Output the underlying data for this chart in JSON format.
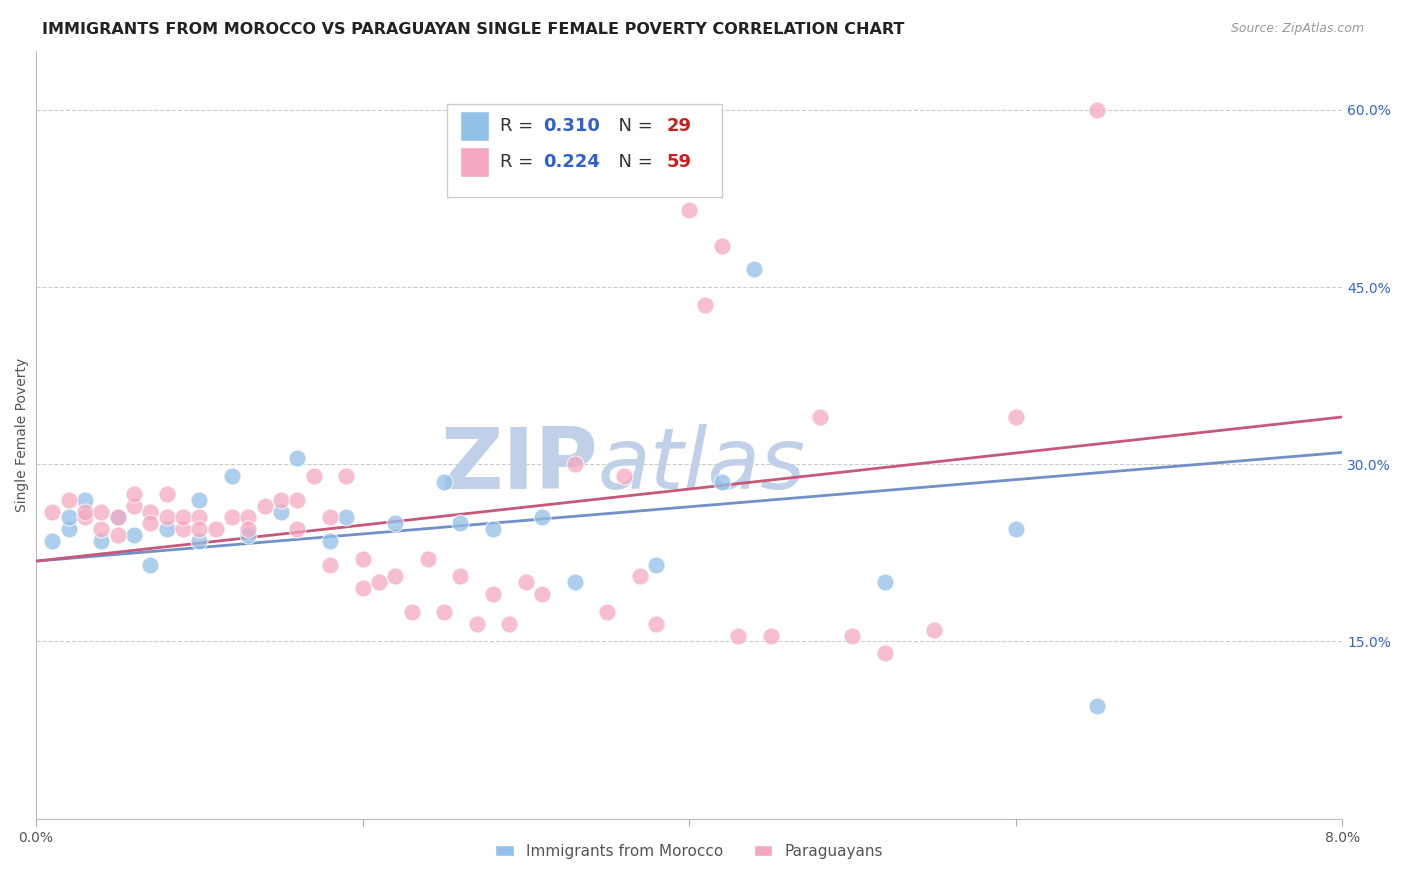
{
  "title": "IMMIGRANTS FROM MOROCCO VS PARAGUAYAN SINGLE FEMALE POVERTY CORRELATION CHART",
  "source": "Source: ZipAtlas.com",
  "ylabel": "Single Female Poverty",
  "x_min": 0.0,
  "x_max": 0.08,
  "y_min": 0.0,
  "y_max": 0.65,
  "right_yticks": [
    0.15,
    0.3,
    0.45,
    0.6
  ],
  "right_ytick_labels": [
    "15.0%",
    "30.0%",
    "45.0%",
    "60.0%"
  ],
  "grid_yticks": [
    0.15,
    0.3,
    0.45,
    0.6
  ],
  "blue_color": "#92C0E8",
  "pink_color": "#F4A8C0",
  "blue_line_color": "#7090C8",
  "pink_line_color": "#C85878",
  "blue_label": "Immigrants from Morocco",
  "pink_label": "Paraguayans",
  "blue_R": 0.31,
  "blue_N": 29,
  "pink_R": 0.224,
  "pink_N": 59,
  "legend_R_color": "#3060CC",
  "legend_N_color": "#CC2020",
  "blue_x": [
    0.001,
    0.002,
    0.002,
    0.003,
    0.004,
    0.005,
    0.006,
    0.007,
    0.008,
    0.01,
    0.01,
    0.012,
    0.013,
    0.015,
    0.016,
    0.018,
    0.019,
    0.022,
    0.025,
    0.026,
    0.028,
    0.031,
    0.033,
    0.038,
    0.042,
    0.044,
    0.052,
    0.06,
    0.065
  ],
  "blue_y": [
    0.235,
    0.245,
    0.255,
    0.27,
    0.235,
    0.255,
    0.24,
    0.215,
    0.245,
    0.27,
    0.235,
    0.29,
    0.24,
    0.26,
    0.305,
    0.235,
    0.255,
    0.25,
    0.285,
    0.25,
    0.245,
    0.255,
    0.2,
    0.215,
    0.285,
    0.465,
    0.2,
    0.245,
    0.095
  ],
  "pink_x": [
    0.001,
    0.002,
    0.003,
    0.003,
    0.004,
    0.004,
    0.005,
    0.005,
    0.006,
    0.006,
    0.007,
    0.007,
    0.008,
    0.008,
    0.009,
    0.009,
    0.01,
    0.01,
    0.011,
    0.012,
    0.013,
    0.013,
    0.014,
    0.015,
    0.016,
    0.016,
    0.017,
    0.018,
    0.018,
    0.019,
    0.02,
    0.02,
    0.021,
    0.022,
    0.023,
    0.024,
    0.025,
    0.026,
    0.027,
    0.028,
    0.029,
    0.03,
    0.031,
    0.033,
    0.035,
    0.036,
    0.037,
    0.038,
    0.04,
    0.041,
    0.042,
    0.043,
    0.045,
    0.048,
    0.05,
    0.052,
    0.055,
    0.06,
    0.065
  ],
  "pink_y": [
    0.26,
    0.27,
    0.255,
    0.26,
    0.245,
    0.26,
    0.24,
    0.255,
    0.265,
    0.275,
    0.26,
    0.25,
    0.275,
    0.255,
    0.245,
    0.255,
    0.255,
    0.245,
    0.245,
    0.255,
    0.255,
    0.245,
    0.265,
    0.27,
    0.245,
    0.27,
    0.29,
    0.215,
    0.255,
    0.29,
    0.195,
    0.22,
    0.2,
    0.205,
    0.175,
    0.22,
    0.175,
    0.205,
    0.165,
    0.19,
    0.165,
    0.2,
    0.19,
    0.3,
    0.175,
    0.29,
    0.205,
    0.165,
    0.515,
    0.435,
    0.485,
    0.155,
    0.155,
    0.34,
    0.155,
    0.14,
    0.16,
    0.34,
    0.6
  ],
  "trend_blue_x0": 0.0,
  "trend_blue_y0": 0.218,
  "trend_blue_x1": 0.08,
  "trend_blue_y1": 0.31,
  "trend_pink_x0": 0.0,
  "trend_pink_y0": 0.218,
  "trend_pink_x1": 0.08,
  "trend_pink_y1": 0.34,
  "watermark_zip": "ZIP",
  "watermark_atlas": "atlas",
  "watermark_color": "#C0D0E8",
  "background_color": "#FFFFFF",
  "title_fontsize": 11.5,
  "axis_label_fontsize": 10,
  "tick_fontsize": 10,
  "legend_fontsize": 13
}
